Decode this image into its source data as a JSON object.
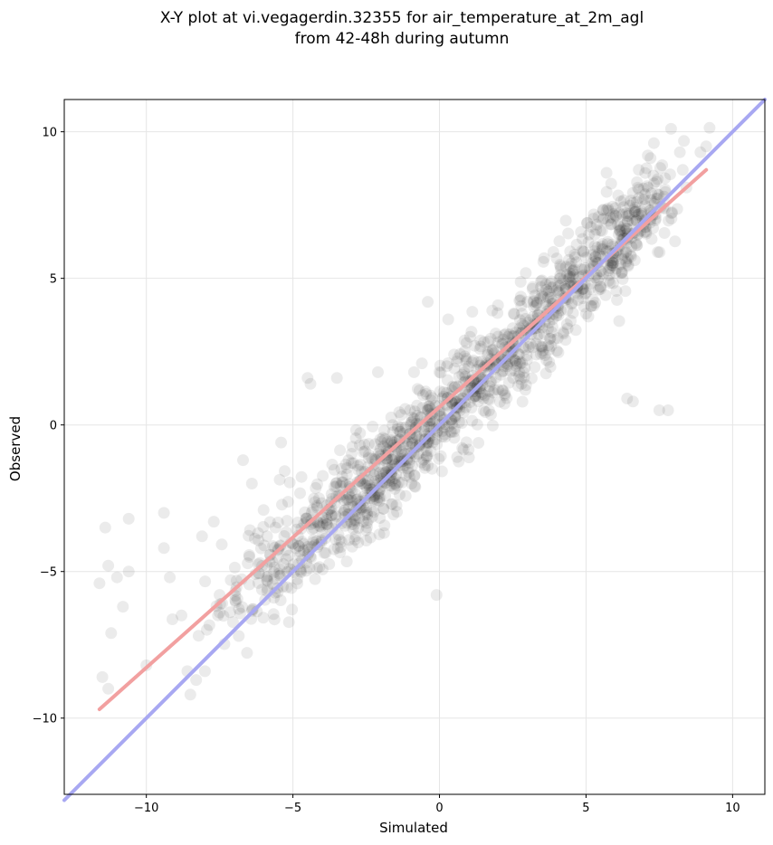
{
  "chart_data": {
    "type": "scatter",
    "title": "X-Y plot at vi.vegagerdin.32355 for air_temperature_at_2m_agl",
    "subtitle": "from 42-48h during autumn",
    "xlabel": "Simulated",
    "ylabel": "Observed",
    "xlim": [
      -12.8,
      11.1
    ],
    "ylim": [
      -12.6,
      11.1
    ],
    "xticks": [
      -10,
      -5,
      0,
      5,
      10
    ],
    "yticks": [
      -10,
      -5,
      0,
      5,
      10
    ],
    "xtick_labels": [
      "−10",
      "−5",
      "0",
      "5",
      "10"
    ],
    "ytick_labels": [
      "−10",
      "−5",
      "0",
      "5",
      "10"
    ],
    "grid": true,
    "point_color": "#000000",
    "points_approx_count": 1400,
    "sample_points": [
      [
        -11.4,
        -3.5
      ],
      [
        -11.6,
        -5.4
      ],
      [
        -11.3,
        -4.8
      ],
      [
        -11.0,
        -5.2
      ],
      [
        -10.8,
        -6.2
      ],
      [
        -11.2,
        -7.1
      ],
      [
        -10.6,
        -5.0
      ],
      [
        -10.6,
        -3.2
      ],
      [
        -11.5,
        -8.6
      ],
      [
        -11.3,
        -9.0
      ],
      [
        -10.0,
        -8.2
      ],
      [
        -9.4,
        -3.0
      ],
      [
        -9.4,
        -4.2
      ],
      [
        -9.2,
        -5.2
      ],
      [
        -8.8,
        -6.5
      ],
      [
        -8.6,
        -8.4
      ],
      [
        -8.5,
        -9.2
      ],
      [
        -8.3,
        -8.7
      ],
      [
        -8.0,
        -8.4
      ],
      [
        -8.1,
        -3.8
      ],
      [
        -7.7,
        -3.3
      ],
      [
        -7.5,
        -5.8
      ],
      [
        -6.7,
        -1.2
      ],
      [
        -6.4,
        -2.0
      ],
      [
        -6.0,
        -2.9
      ],
      [
        -5.6,
        -3.5
      ],
      [
        -5.4,
        -0.6
      ],
      [
        -4.9,
        -4.2
      ],
      [
        -4.5,
        1.6
      ],
      [
        -4.4,
        1.4
      ],
      [
        -3.5,
        1.6
      ],
      [
        -3.0,
        -1.3
      ],
      [
        -2.6,
        -3.3
      ],
      [
        -2.1,
        1.8
      ],
      [
        -1.6,
        -2.7
      ],
      [
        -1.6,
        0.0
      ],
      [
        -1.1,
        -1.2
      ],
      [
        -0.6,
        2.1
      ],
      [
        -0.5,
        -0.5
      ],
      [
        -0.4,
        4.2
      ],
      [
        -0.3,
        1.0
      ],
      [
        -0.1,
        -0.1
      ],
      [
        -0.1,
        -5.8
      ],
      [
        0.0,
        1.8
      ],
      [
        0.1,
        -0.4
      ],
      [
        0.3,
        3.6
      ],
      [
        0.4,
        0.8
      ],
      [
        0.6,
        -1.1
      ],
      [
        0.5,
        2.4
      ],
      [
        0.7,
        0.5
      ],
      [
        1.0,
        1.5
      ],
      [
        1.2,
        2.7
      ],
      [
        1.5,
        0.9
      ],
      [
        1.8,
        3.9
      ],
      [
        2.0,
        1.2
      ],
      [
        2.2,
        2.0
      ],
      [
        2.5,
        3.3
      ],
      [
        2.8,
        1.4
      ],
      [
        3.0,
        4.2
      ],
      [
        3.3,
        2.4
      ],
      [
        3.6,
        3.5
      ],
      [
        4.0,
        4.6
      ],
      [
        4.3,
        2.9
      ],
      [
        4.6,
        5.3
      ],
      [
        5.0,
        3.8
      ],
      [
        5.3,
        6.1
      ],
      [
        5.5,
        4.7
      ],
      [
        5.7,
        8.6
      ],
      [
        5.9,
        5.7
      ],
      [
        6.0,
        7.4
      ],
      [
        6.3,
        6.8
      ],
      [
        6.4,
        0.9
      ],
      [
        6.6,
        0.8
      ],
      [
        6.8,
        8.7
      ],
      [
        7.0,
        7.7
      ],
      [
        7.2,
        9.1
      ],
      [
        7.4,
        8.3
      ],
      [
        7.5,
        0.5
      ],
      [
        7.8,
        0.5
      ],
      [
        7.9,
        10.1
      ],
      [
        8.2,
        9.3
      ],
      [
        8.3,
        8.7
      ],
      [
        8.9,
        9.3
      ],
      [
        9.1,
        9.5
      ]
    ],
    "lines": [
      {
        "color": "#f2a0a0",
        "x": [
          -11.6,
          9.1
        ],
        "y": [
          -9.7,
          8.7
        ]
      },
      {
        "color": "#a8a8f2",
        "x": [
          -12.8,
          11.1
        ],
        "y": [
          -12.8,
          11.1
        ]
      }
    ]
  }
}
